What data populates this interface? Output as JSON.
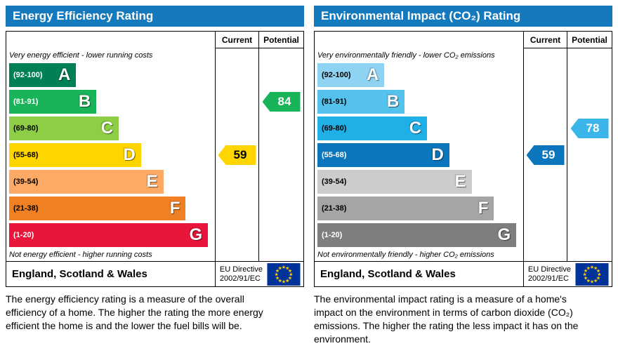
{
  "colors": {
    "header_bg": "#1479bd",
    "eu_flag_blue": "#003399",
    "eu_flag_star": "#ffcc00"
  },
  "chart_data": [
    {
      "type": "bar",
      "title": "Energy Efficiency Rating",
      "categories": [
        "A",
        "B",
        "C",
        "D",
        "E",
        "F",
        "G"
      ],
      "ranges": [
        "92-100",
        "81-91",
        "69-80",
        "55-68",
        "39-54",
        "21-38",
        "1-20"
      ],
      "current": 59,
      "potential": 84,
      "current_band": "D",
      "potential_band": "B",
      "region": "England, Scotland & Wales"
    },
    {
      "type": "bar",
      "title": "Environmental Impact (CO₂) Rating",
      "categories": [
        "A",
        "B",
        "C",
        "D",
        "E",
        "F",
        "G"
      ],
      "ranges": [
        "92-100",
        "81-91",
        "69-80",
        "55-68",
        "39-54",
        "21-38",
        "1-20"
      ],
      "current": 59,
      "potential": 78,
      "current_band": "D",
      "potential_band": "C",
      "region": "England, Scotland & Wales"
    }
  ],
  "panels": [
    {
      "title": "Energy Efficiency Rating",
      "header": {
        "current": "Current",
        "potential": "Potential"
      },
      "top_note": "Very energy efficient - lower running costs",
      "bottom_note": "Not energy efficient - higher running costs",
      "bands": [
        {
          "range": "(92-100)",
          "letter": "A",
          "color": "#008054",
          "label_color": "#ffffff",
          "width_pct": 33
        },
        {
          "range": "(81-91)",
          "letter": "B",
          "color": "#19b459",
          "label_color": "#ffffff",
          "width_pct": 43
        },
        {
          "range": "(69-80)",
          "letter": "C",
          "color": "#8dce46",
          "label_color": "#000000",
          "width_pct": 54
        },
        {
          "range": "(55-68)",
          "letter": "D",
          "color": "#ffd500",
          "label_color": "#000000",
          "width_pct": 65
        },
        {
          "range": "(39-54)",
          "letter": "E",
          "color": "#fcaa65",
          "label_color": "#000000",
          "width_pct": 76
        },
        {
          "range": "(21-38)",
          "letter": "F",
          "color": "#ef8023",
          "label_color": "#000000",
          "width_pct": 87
        },
        {
          "range": "(1-20)",
          "letter": "G",
          "color": "#e9153b",
          "label_color": "#ffffff",
          "width_pct": 98
        }
      ],
      "current": {
        "value": "59",
        "band_index": 3,
        "color": "#ffd500",
        "text_color": "#000000"
      },
      "potential": {
        "value": "84",
        "band_index": 1,
        "color": "#19b459",
        "text_color": "#ffffff"
      },
      "footer": {
        "region": "England, Scotland & Wales",
        "directive_line1": "EU Directive",
        "directive_line2": "2002/91/EC"
      },
      "caption": "The energy efficiency rating is a measure of the overall efficiency of a home. The higher the rating the more energy efficient the home is and the lower the fuel bills will be."
    },
    {
      "title": "Environmental Impact (CO₂) Rating",
      "header": {
        "current": "Current",
        "potential": "Potential"
      },
      "top_note": "Very environmentally friendly - lower CO₂ emissions",
      "bottom_note": "Not environmentally friendly - higher CO₂ emissions",
      "bands": [
        {
          "range": "(92-100)",
          "letter": "A",
          "color": "#8ed4f2",
          "label_color": "#000000",
          "width_pct": 33
        },
        {
          "range": "(81-91)",
          "letter": "B",
          "color": "#55c2ee",
          "label_color": "#000000",
          "width_pct": 43
        },
        {
          "range": "(69-80)",
          "letter": "C",
          "color": "#1fb0e8",
          "label_color": "#000000",
          "width_pct": 54
        },
        {
          "range": "(55-68)",
          "letter": "D",
          "color": "#0c76bd",
          "label_color": "#ffffff",
          "width_pct": 65
        },
        {
          "range": "(39-54)",
          "letter": "E",
          "color": "#cccccc",
          "label_color": "#000000",
          "width_pct": 76
        },
        {
          "range": "(21-38)",
          "letter": "F",
          "color": "#a5a5a5",
          "label_color": "#000000",
          "width_pct": 87
        },
        {
          "range": "(1-20)",
          "letter": "G",
          "color": "#7e7e7e",
          "label_color": "#ffffff",
          "width_pct": 98
        }
      ],
      "current": {
        "value": "59",
        "band_index": 3,
        "color": "#0c76bd",
        "text_color": "#ffffff"
      },
      "potential": {
        "value": "78",
        "band_index": 2,
        "color": "#39b5e9",
        "text_color": "#ffffff"
      },
      "footer": {
        "region": "England, Scotland & Wales",
        "directive_line1": "EU Directive",
        "directive_line2": "2002/91/EC"
      },
      "caption": "The environmental impact rating is a measure of a home's impact on the environment in terms of carbon dioxide (CO₂) emissions. The higher the rating the less impact it has on the environment."
    }
  ]
}
